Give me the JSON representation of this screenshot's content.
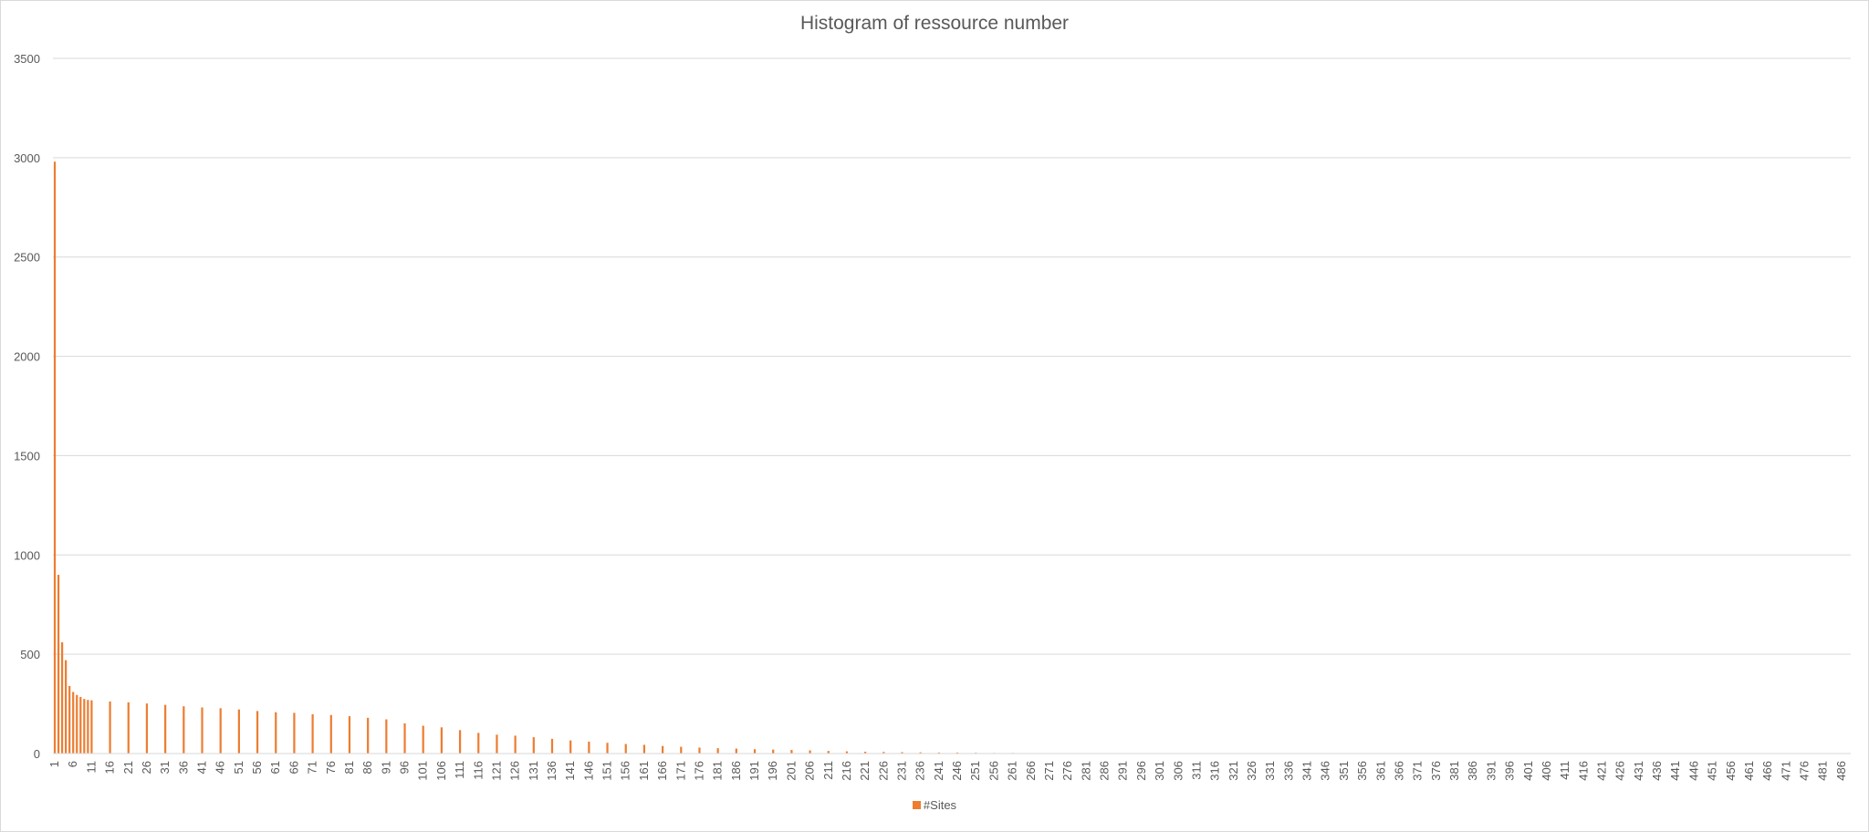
{
  "chart_data": {
    "type": "bar",
    "title": "Histogram of ressource number",
    "xlabel": "",
    "ylabel": "",
    "ylim": [
      0,
      3500
    ],
    "yticks": [
      0,
      500,
      1000,
      1500,
      2000,
      2500,
      3000,
      3500
    ],
    "x_min": 1,
    "x_max": 488,
    "x_tick_labels": [
      "1",
      "6",
      "11",
      "16",
      "21",
      "26",
      "31",
      "36",
      "41",
      "46",
      "51",
      "56",
      "61",
      "66",
      "71",
      "76",
      "81",
      "86",
      "91",
      "96",
      "101",
      "106",
      "111",
      "116",
      "121",
      "126",
      "131",
      "136",
      "141",
      "146",
      "151",
      "156",
      "161",
      "166",
      "171",
      "176",
      "181",
      "186",
      "191",
      "196",
      "201",
      "206",
      "211",
      "216",
      "221",
      "226",
      "231",
      "236",
      "241",
      "246",
      "251",
      "256",
      "261",
      "266",
      "271",
      "276",
      "281",
      "286",
      "291",
      "296",
      "301",
      "306",
      "311",
      "316",
      "321",
      "326",
      "331",
      "336",
      "341",
      "346",
      "351",
      "356",
      "361",
      "366",
      "371",
      "376",
      "381",
      "386",
      "391",
      "396",
      "401",
      "406",
      "411",
      "416",
      "421",
      "426",
      "431",
      "436",
      "441",
      "446",
      "451",
      "456",
      "461",
      "466",
      "471",
      "476",
      "481",
      "486"
    ],
    "grid": true,
    "legend_position": "bottom",
    "series": [
      {
        "name": "#Sites",
        "color": "#ed7d31",
        "x": [
          1,
          2,
          3,
          4,
          5,
          6,
          7,
          8,
          9,
          10,
          11,
          16,
          21,
          26,
          31,
          36,
          41,
          46,
          51,
          56,
          61,
          66,
          71,
          76,
          81,
          86,
          91,
          96,
          101,
          106,
          111,
          116,
          121,
          126,
          131,
          136,
          141,
          146,
          151,
          156,
          161,
          166,
          171,
          176,
          181,
          186,
          191,
          196,
          201,
          206,
          211,
          216,
          221,
          226,
          231,
          236,
          241,
          246,
          251,
          256,
          261,
          266,
          271,
          276,
          277
        ],
        "values": [
          2980,
          900,
          560,
          470,
          340,
          310,
          295,
          285,
          275,
          270,
          268,
          262,
          258,
          252,
          245,
          238,
          232,
          228,
          222,
          214,
          208,
          205,
          198,
          194,
          188,
          180,
          172,
          152,
          140,
          132,
          118,
          104,
          95,
          90,
          82,
          74,
          66,
          60,
          54,
          48,
          44,
          38,
          34,
          30,
          27,
          25,
          22,
          20,
          18,
          16,
          13,
          11,
          9,
          8,
          7,
          6,
          5,
          5,
          4,
          3,
          3,
          2,
          2,
          1,
          1
        ]
      }
    ]
  }
}
